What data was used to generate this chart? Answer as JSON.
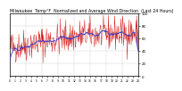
{
  "title": "Milwaukee  Temp°F  Normalized and Average Wind Direction  (Last 24 Hours)",
  "n_points": 288,
  "y_min": 0,
  "y_max": 100,
  "y_ticks": [
    0,
    20,
    40,
    60,
    80,
    100
  ],
  "background_color": "#ffffff",
  "plot_bg_color": "#ffffff",
  "grid_color": "#bbbbbb",
  "red_color": "#cc0000",
  "blue_color": "#3333cc",
  "title_fontsize": 3.4,
  "tick_fontsize": 2.8,
  "n_vgrid": 8,
  "seed": 42
}
